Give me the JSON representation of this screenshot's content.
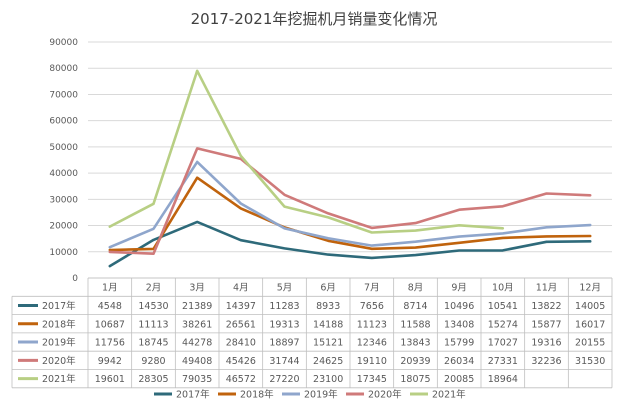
{
  "chart_data": {
    "type": "line",
    "title": "2017-2021年挖掘机月销量变化情况",
    "categories": [
      "1月",
      "2月",
      "3月",
      "4月",
      "5月",
      "6月",
      "7月",
      "8月",
      "9月",
      "10月",
      "11月",
      "12月"
    ],
    "ylim": [
      0,
      90000
    ],
    "yticks": [
      0,
      10000,
      20000,
      30000,
      40000,
      50000,
      60000,
      70000,
      80000,
      90000
    ],
    "grid": true,
    "legend_position": "bottom",
    "series": [
      {
        "name": "2017年",
        "color": "#2e6a7a",
        "values": [
          4548,
          14530,
          21389,
          14397,
          11283,
          8933,
          7656,
          8714,
          10496,
          10541,
          13822,
          14005
        ]
      },
      {
        "name": "2018年",
        "color": "#c0630d",
        "values": [
          10687,
          11113,
          38261,
          26561,
          19313,
          14188,
          11123,
          11588,
          13408,
          15274,
          15877,
          16017
        ]
      },
      {
        "name": "2019年",
        "color": "#8fa6cc",
        "values": [
          11756,
          18745,
          44278,
          28410,
          18897,
          15121,
          12346,
          13843,
          15799,
          17027,
          19316,
          20155
        ]
      },
      {
        "name": "2020年",
        "color": "#cf7a7a",
        "values": [
          9942,
          9280,
          49408,
          45426,
          31744,
          24625,
          19110,
          20939,
          26034,
          27331,
          32236,
          31530
        ]
      },
      {
        "name": "2021年",
        "color": "#b8cf84",
        "values": [
          19601,
          28305,
          79035,
          46572,
          27220,
          23100,
          17345,
          18075,
          20085,
          18964,
          null,
          null
        ]
      }
    ]
  }
}
